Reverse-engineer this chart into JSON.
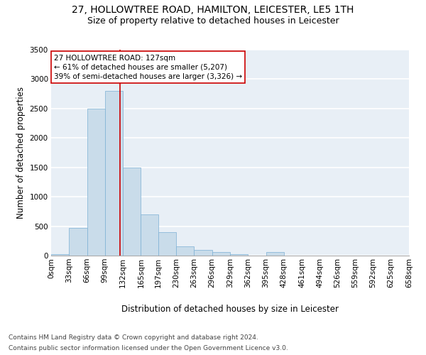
{
  "title_line1": "27, HOLLOWTREE ROAD, HAMILTON, LEICESTER, LE5 1TH",
  "title_line2": "Size of property relative to detached houses in Leicester",
  "xlabel": "Distribution of detached houses by size in Leicester",
  "ylabel": "Number of detached properties",
  "footer_line1": "Contains HM Land Registry data © Crown copyright and database right 2024.",
  "footer_line2": "Contains public sector information licensed under the Open Government Licence v3.0.",
  "annotation_line1": "27 HOLLOWTREE ROAD: 127sqm",
  "annotation_line2": "← 61% of detached houses are smaller (5,207)",
  "annotation_line3": "39% of semi-detached houses are larger (3,326) →",
  "property_size": 127,
  "bin_edges": [
    0,
    33,
    66,
    99,
    132,
    165,
    197,
    230,
    263,
    296,
    329,
    362,
    395,
    428,
    461,
    494,
    526,
    559,
    592,
    625,
    658
  ],
  "bin_labels": [
    "0sqm",
    "33sqm",
    "66sqm",
    "99sqm",
    "132sqm",
    "165sqm",
    "197sqm",
    "230sqm",
    "263sqm",
    "296sqm",
    "329sqm",
    "362sqm",
    "395sqm",
    "428sqm",
    "461sqm",
    "494sqm",
    "526sqm",
    "559sqm",
    "592sqm",
    "625sqm",
    "658sqm"
  ],
  "bar_heights": [
    30,
    470,
    2500,
    2800,
    1500,
    700,
    400,
    155,
    100,
    55,
    25,
    0,
    55,
    0,
    0,
    0,
    0,
    0,
    0,
    0
  ],
  "bar_color": "#c9dcea",
  "bar_edge_color": "#7bafd4",
  "vline_color": "#cc0000",
  "vline_x": 127,
  "ylim": [
    0,
    3500
  ],
  "yticks": [
    0,
    500,
    1000,
    1500,
    2000,
    2500,
    3000,
    3500
  ],
  "background_color": "#e8eff6",
  "grid_color": "#ffffff",
  "annotation_box_color": "#ffffff",
  "annotation_box_edge": "#cc0000",
  "title_fontsize": 10,
  "subtitle_fontsize": 9,
  "axis_label_fontsize": 8.5,
  "tick_fontsize": 7.5,
  "annotation_fontsize": 7.5,
  "footer_fontsize": 6.5
}
